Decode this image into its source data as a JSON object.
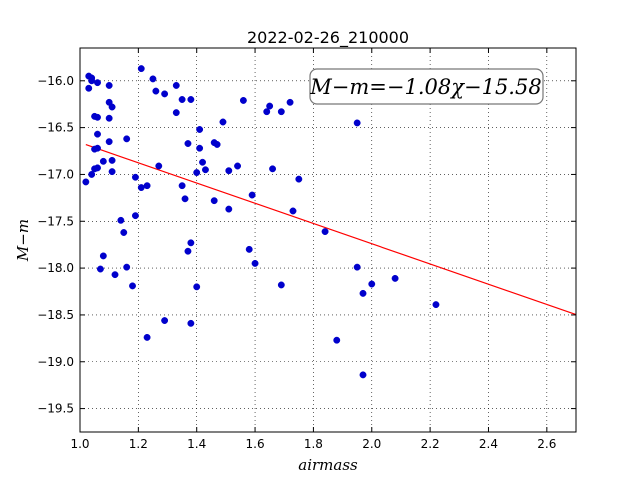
{
  "chart_data": {
    "type": "scatter",
    "title": "2022-02-26_210000",
    "xlabel": "airmass",
    "ylabel": "M−m",
    "xlim": [
      1.0,
      2.7
    ],
    "ylim": [
      -19.75,
      -15.65
    ],
    "y_inverted": true,
    "grid": true,
    "x_ticks": [
      "1.0",
      "1.2",
      "1.4",
      "1.6",
      "1.8",
      "2.0",
      "2.2",
      "2.4",
      "2.6"
    ],
    "y_ticks": [
      "−16.0",
      "−16.5",
      "−17.0",
      "−17.5",
      "−18.0",
      "−18.5",
      "−19.0",
      "−19.5"
    ],
    "annotation": "M−m=−1.08χ−15.58",
    "fit": {
      "slope": -1.08,
      "intercept": -15.58,
      "color": "#ff0000"
    },
    "marker_color": "#0000cc",
    "points": [
      [
        1.03,
        -15.95
      ],
      [
        1.04,
        -15.97
      ],
      [
        1.04,
        -16.0
      ],
      [
        1.03,
        -16.08
      ],
      [
        1.06,
        -16.02
      ],
      [
        1.05,
        -16.38
      ],
      [
        1.06,
        -16.39
      ],
      [
        1.06,
        -16.57
      ],
      [
        1.05,
        -16.73
      ],
      [
        1.06,
        -16.72
      ],
      [
        1.04,
        -17.0
      ],
      [
        1.06,
        -16.93
      ],
      [
        1.05,
        -16.94
      ],
      [
        1.02,
        -17.08
      ],
      [
        1.08,
        -16.86
      ],
      [
        1.1,
        -16.05
      ],
      [
        1.1,
        -16.23
      ],
      [
        1.11,
        -16.28
      ],
      [
        1.1,
        -16.4
      ],
      [
        1.1,
        -16.65
      ],
      [
        1.11,
        -16.85
      ],
      [
        1.11,
        -16.97
      ],
      [
        1.16,
        -16.62
      ],
      [
        1.21,
        -15.87
      ],
      [
        1.25,
        -15.98
      ],
      [
        1.26,
        -16.11
      ],
      [
        1.29,
        -16.14
      ],
      [
        1.33,
        -16.05
      ],
      [
        1.33,
        -16.34
      ],
      [
        1.35,
        -16.2
      ],
      [
        1.38,
        -16.2
      ],
      [
        1.41,
        -16.52
      ],
      [
        1.37,
        -16.67
      ],
      [
        1.41,
        -16.72
      ],
      [
        1.42,
        -16.87
      ],
      [
        1.43,
        -16.95
      ],
      [
        1.4,
        -16.98
      ],
      [
        1.46,
        -16.66
      ],
      [
        1.47,
        -16.68
      ],
      [
        1.49,
        -16.44
      ],
      [
        1.51,
        -16.96
      ],
      [
        1.54,
        -16.91
      ],
      [
        1.56,
        -16.21
      ],
      [
        1.64,
        -16.33
      ],
      [
        1.65,
        -16.27
      ],
      [
        1.69,
        -16.33
      ],
      [
        1.72,
        -16.23
      ],
      [
        1.66,
        -16.94
      ],
      [
        1.75,
        -17.05
      ],
      [
        1.27,
        -16.91
      ],
      [
        1.19,
        -17.03
      ],
      [
        1.21,
        -17.14
      ],
      [
        1.23,
        -17.12
      ],
      [
        1.35,
        -17.12
      ],
      [
        1.36,
        -17.26
      ],
      [
        1.46,
        -17.28
      ],
      [
        1.51,
        -17.37
      ],
      [
        1.59,
        -17.22
      ],
      [
        1.73,
        -17.39
      ],
      [
        1.84,
        -17.61
      ],
      [
        1.19,
        -17.44
      ],
      [
        1.14,
        -17.49
      ],
      [
        1.15,
        -17.62
      ],
      [
        1.38,
        -17.73
      ],
      [
        1.37,
        -17.82
      ],
      [
        1.08,
        -17.87
      ],
      [
        1.07,
        -18.01
      ],
      [
        1.16,
        -17.99
      ],
      [
        1.12,
        -18.07
      ],
      [
        1.58,
        -17.8
      ],
      [
        1.6,
        -17.95
      ],
      [
        1.18,
        -18.19
      ],
      [
        1.4,
        -18.2
      ],
      [
        1.69,
        -18.18
      ],
      [
        1.95,
        -17.99
      ],
      [
        2.0,
        -18.17
      ],
      [
        1.97,
        -18.27
      ],
      [
        2.08,
        -18.11
      ],
      [
        1.29,
        -18.56
      ],
      [
        1.38,
        -18.59
      ],
      [
        1.23,
        -18.74
      ],
      [
        1.88,
        -18.77
      ],
      [
        1.97,
        -19.14
      ],
      [
        2.22,
        -18.39
      ],
      [
        1.95,
        -16.45
      ]
    ]
  }
}
